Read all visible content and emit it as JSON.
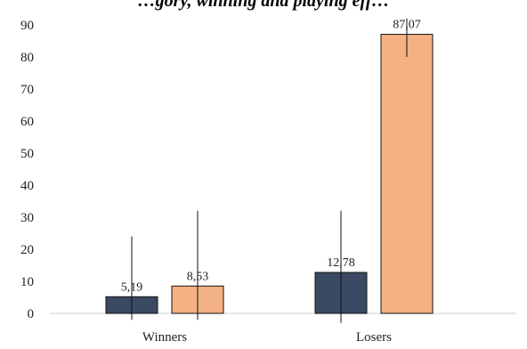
{
  "chart_data": {
    "type": "bar",
    "title": "…gory, winning and playing eff…",
    "categories": [
      "Winners",
      "Losers"
    ],
    "series": [
      {
        "values": [
          5.19,
          12.78
        ],
        "labels": [
          "5,19",
          "12,78"
        ],
        "color": "#3a4a63",
        "error": [
          [
            -2,
            24
          ],
          [
            -3,
            32
          ]
        ]
      },
      {
        "values": [
          8.53,
          87.07
        ],
        "labels": [
          "8,53",
          "87,07"
        ],
        "color": "#f4b183",
        "error": [
          [
            -2,
            32
          ],
          [
            80,
            92
          ]
        ]
      }
    ],
    "y_ticks": [
      "0",
      "10",
      "20",
      "30",
      "40",
      "50",
      "60",
      "70",
      "80",
      "90"
    ],
    "ylim": [
      0,
      95
    ],
    "grid": false
  }
}
